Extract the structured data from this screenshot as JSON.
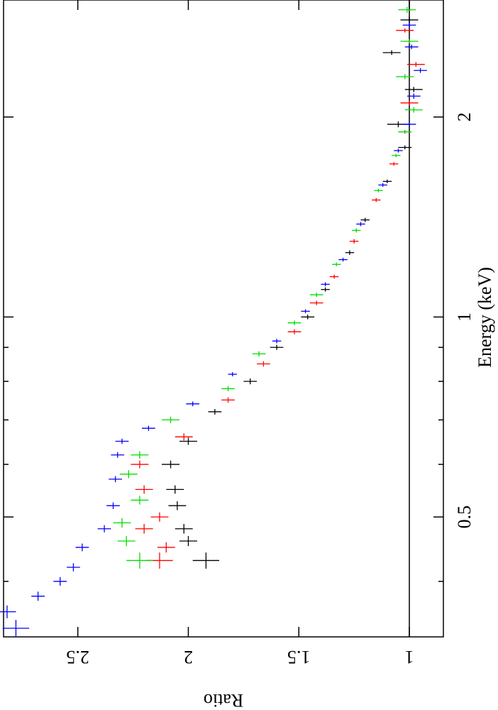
{
  "chart_data": {
    "type": "errorbar",
    "xlabel": "Energy (keV)",
    "ylabel": "Ratio",
    "xlog": true,
    "xlim": [
      0.33,
      3.0
    ],
    "ylim": [
      0.846,
      2.836
    ],
    "xticks": [
      0.5,
      1,
      2
    ],
    "xminor": [
      0.4,
      0.6,
      0.7,
      0.8,
      0.9
    ],
    "yticks": [
      1,
      1.5,
      2,
      2.5
    ],
    "hline": 1,
    "series": [
      {
        "color": "#000000",
        "x": [
          0.43,
          0.46,
          0.48,
          0.52,
          0.55,
          0.6,
          0.65,
          0.72,
          0.8,
          0.9,
          1.0,
          1.1,
          1.25,
          1.4,
          1.6,
          1.8,
          1.95,
          2.2,
          2.5,
          2.8
        ],
        "values": [
          1.92,
          2.0,
          2.02,
          2.05,
          2.06,
          2.08,
          2.0,
          1.88,
          1.72,
          1.6,
          1.46,
          1.38,
          1.27,
          1.2,
          1.1,
          1.02,
          1.05,
          0.98,
          1.08,
          1.0
        ],
        "xerr": [
          0.012,
          0.008,
          0.008,
          0.008,
          0.008,
          0.008,
          0.008,
          0.007,
          0.008,
          0.008,
          0.008,
          0.008,
          0.01,
          0.01,
          0.01,
          0.012,
          0.02,
          0.02,
          0.02,
          0.03
        ],
        "yerr": [
          0.06,
          0.04,
          0.04,
          0.04,
          0.04,
          0.04,
          0.04,
          0.03,
          0.03,
          0.03,
          0.03,
          0.02,
          0.02,
          0.02,
          0.02,
          0.03,
          0.05,
          0.04,
          0.04,
          0.04
        ]
      },
      {
        "color": "#ff0000",
        "x": [
          0.43,
          0.45,
          0.48,
          0.5,
          0.55,
          0.6,
          0.66,
          0.75,
          0.85,
          0.95,
          1.05,
          1.15,
          1.3,
          1.5,
          1.7,
          1.9,
          2.1,
          2.4,
          2.7
        ],
        "values": [
          2.13,
          2.1,
          2.2,
          2.13,
          2.2,
          2.22,
          2.02,
          1.82,
          1.66,
          1.52,
          1.42,
          1.34,
          1.25,
          1.15,
          1.07,
          1.02,
          1.0,
          0.97,
          1.02
        ],
        "xerr": [
          0.012,
          0.008,
          0.008,
          0.008,
          0.008,
          0.008,
          0.008,
          0.007,
          0.008,
          0.008,
          0.008,
          0.008,
          0.01,
          0.01,
          0.01,
          0.012,
          0.02,
          0.02,
          0.02
        ],
        "yerr": [
          0.06,
          0.04,
          0.04,
          0.04,
          0.04,
          0.04,
          0.04,
          0.03,
          0.03,
          0.03,
          0.03,
          0.02,
          0.02,
          0.02,
          0.02,
          0.03,
          0.04,
          0.04,
          0.04
        ]
      },
      {
        "color": "#00dd00",
        "x": [
          0.43,
          0.46,
          0.49,
          0.53,
          0.58,
          0.62,
          0.7,
          0.78,
          0.88,
          0.98,
          1.08,
          1.2,
          1.35,
          1.55,
          1.75,
          1.9,
          2.05,
          2.3,
          2.6,
          2.9
        ],
        "values": [
          2.22,
          2.28,
          2.3,
          2.22,
          2.27,
          2.22,
          2.08,
          1.82,
          1.68,
          1.52,
          1.42,
          1.33,
          1.24,
          1.14,
          1.06,
          1.02,
          0.98,
          1.02,
          1.0,
          1.01
        ],
        "xerr": [
          0.012,
          0.008,
          0.008,
          0.008,
          0.008,
          0.008,
          0.008,
          0.007,
          0.008,
          0.008,
          0.008,
          0.008,
          0.01,
          0.01,
          0.01,
          0.012,
          0.02,
          0.02,
          0.02,
          0.03
        ],
        "yerr": [
          0.06,
          0.04,
          0.04,
          0.04,
          0.04,
          0.04,
          0.04,
          0.03,
          0.03,
          0.03,
          0.03,
          0.02,
          0.02,
          0.02,
          0.02,
          0.03,
          0.04,
          0.04,
          0.04,
          0.04
        ]
      },
      {
        "color": "#0000ff",
        "x": [
          0.34,
          0.36,
          0.38,
          0.4,
          0.42,
          0.45,
          0.48,
          0.52,
          0.57,
          0.62,
          0.65,
          0.68,
          0.74,
          0.82,
          0.92,
          1.02,
          1.12,
          1.22,
          1.38,
          1.58,
          1.78,
          1.95,
          2.15,
          2.35,
          2.55,
          2.75
        ],
        "values": [
          2.78,
          2.82,
          2.68,
          2.58,
          2.52,
          2.48,
          2.38,
          2.34,
          2.33,
          2.32,
          2.3,
          2.18,
          1.98,
          1.8,
          1.6,
          1.47,
          1.38,
          1.3,
          1.22,
          1.12,
          1.05,
          1.0,
          0.98,
          0.95,
          0.99,
          1.0
        ],
        "xerr": [
          0.01,
          0.008,
          0.006,
          0.006,
          0.006,
          0.006,
          0.006,
          0.006,
          0.006,
          0.006,
          0.006,
          0.006,
          0.006,
          0.006,
          0.007,
          0.007,
          0.008,
          0.008,
          0.01,
          0.01,
          0.012,
          0.015,
          0.02,
          0.02,
          0.02,
          0.03
        ],
        "yerr": [
          0.06,
          0.04,
          0.03,
          0.03,
          0.03,
          0.03,
          0.03,
          0.03,
          0.03,
          0.03,
          0.03,
          0.03,
          0.03,
          0.02,
          0.02,
          0.02,
          0.02,
          0.02,
          0.02,
          0.02,
          0.02,
          0.03,
          0.03,
          0.03,
          0.03,
          0.03
        ]
      }
    ]
  }
}
